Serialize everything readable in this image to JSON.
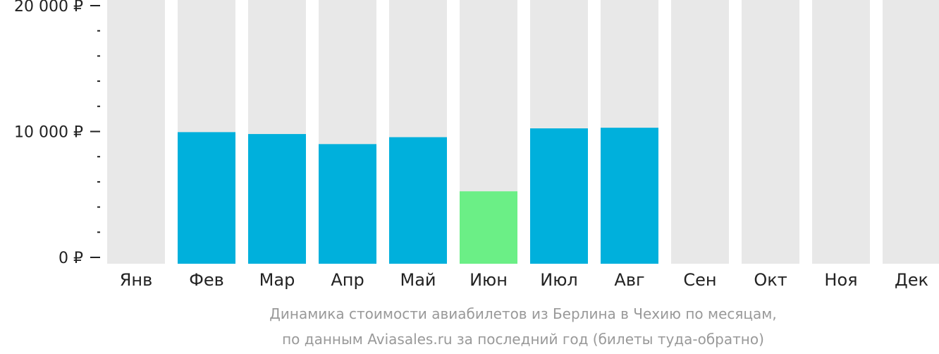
{
  "chart_data": {
    "type": "bar",
    "categories": [
      "Янв",
      "Фев",
      "Мар",
      "Апр",
      "Май",
      "Июн",
      "Июл",
      "Авг",
      "Сен",
      "Окт",
      "Ноя",
      "Дек"
    ],
    "values": [
      null,
      9950,
      9800,
      9000,
      9550,
      5250,
      10250,
      10300,
      null,
      null,
      null,
      null
    ],
    "ylim": [
      0,
      20000
    ],
    "y_ticks": [
      {
        "value": 0,
        "label": "0 ₽"
      },
      {
        "value": 10000,
        "label": "10 000 ₽"
      },
      {
        "value": 20000,
        "label": "20 000 ₽"
      }
    ],
    "y_minor_step": 2000,
    "highlight_index": 5,
    "caption": [
      "Динамика стоимости авиабилетов из Берлина в Чехию по месяцам,",
      "по данным Aviasales.ru за последний год (билеты туда-обратно)"
    ],
    "grid": false,
    "legend": "none"
  },
  "colors": {
    "bar": "#00b0dc",
    "highlight": "#6bef86",
    "background_bar": "#e8e8e8",
    "axis": "#222222",
    "caption": "#999999"
  }
}
